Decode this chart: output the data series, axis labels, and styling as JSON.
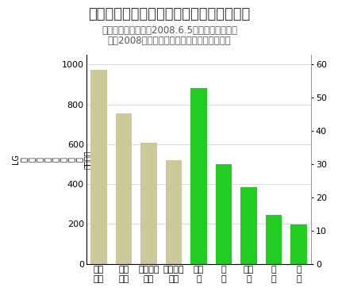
{
  "title": "電源別のライフサイクル二酸化炭素排出量",
  "subtitle_line1": "出所：日本経済新聞2008.6.5付け地球環境広告",
  "subtitle_line2": "特集2008から引用（資料：電力中央研究所）",
  "categories": [
    "石炭\n火力",
    "石油\n火力",
    "天然ガス\n火力",
    "天然ガス\n複合",
    "太陽\n光",
    "風\n力",
    "原子\n力",
    "地\n熱",
    "水\n力"
  ],
  "values": [
    975,
    755,
    608,
    519,
    881,
    499,
    384,
    247,
    196
  ],
  "bar_colors": [
    "#cbc99a",
    "#cbc99a",
    "#cbc99a",
    "#cbc99a",
    "#22cc22",
    "#22cc22",
    "#22cc22",
    "#22cc22",
    "#22cc22"
  ],
  "ylim_left": [
    0,
    1050
  ],
  "ylim_right": [
    0,
    63
  ],
  "yticks_left": [
    0,
    200,
    400,
    600,
    800,
    1000
  ],
  "yticks_right": [
    0,
    10,
    20,
    30,
    40,
    50,
    60
  ],
  "background_color": "#ffffff",
  "title_fontsize": 13,
  "subtitle_fontsize": 8.5,
  "tick_label_fontsize": 8,
  "xlabel_fontsize": 8,
  "ylabel_fontsize": 7
}
